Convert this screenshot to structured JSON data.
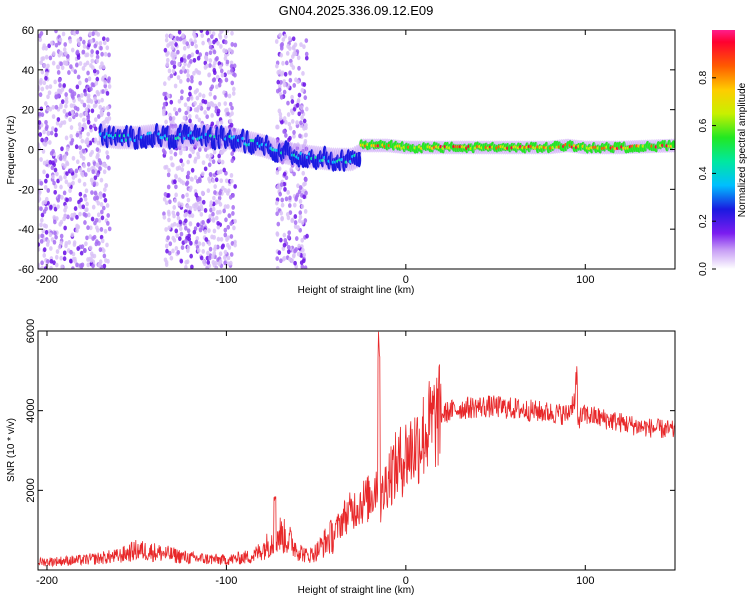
{
  "title": "GN04.2025.336.09.12.E09",
  "chart_data": [
    {
      "type": "heatmap",
      "name": "spectrogram",
      "xlabel": "Height of straight line (km)",
      "ylabel": "Frequency (Hz)",
      "xlim": [
        -205,
        150
      ],
      "ylim": [
        -60,
        60
      ],
      "xticks": [
        "-200",
        "-100",
        "0",
        "100"
      ],
      "xtick_values": [
        -200,
        -100,
        0,
        100
      ],
      "yticks": [
        "60",
        "40",
        "20",
        "0",
        "-20",
        "-40",
        "-60"
      ],
      "ytick_values": [
        60,
        40,
        20,
        0,
        -20,
        -40,
        -60
      ],
      "colorbar": {
        "label": "Normalized spectral amplitude",
        "ticks": [
          "0.0",
          "0.2",
          "0.4",
          "0.6",
          "0.8"
        ],
        "tick_values": [
          0.0,
          0.2,
          0.4,
          0.6,
          0.8
        ],
        "range": [
          0,
          1
        ]
      },
      "trace": {
        "x": [
          -170,
          -160,
          -150,
          -140,
          -130,
          -120,
          -110,
          -100,
          -90,
          -80,
          -70,
          -60,
          -50,
          -40,
          -35,
          -30,
          -28,
          -26,
          -25,
          -20,
          -10,
          0,
          10,
          20,
          40,
          60,
          80,
          90,
          100,
          120,
          150
        ],
        "y": [
          7,
          6,
          6,
          7,
          6,
          7,
          6,
          6,
          4,
          2,
          -1,
          -3,
          -4,
          -5,
          -5,
          -5,
          -4,
          -3,
          2,
          2,
          2,
          1,
          1,
          1,
          1,
          1,
          1,
          2,
          1,
          1,
          2
        ]
      },
      "noise_regions_km": [
        [
          -205,
          -165
        ],
        [
          -135,
          -95
        ],
        [
          -72,
          -55
        ]
      ]
    },
    {
      "type": "line",
      "name": "snr",
      "xlabel": "Height of straight line (km)",
      "ylabel": "SNR (10 * v/v)",
      "xlim": [
        -205,
        150
      ],
      "ylim": [
        0,
        6000
      ],
      "xticks": [
        "-200",
        "-100",
        "0",
        "100"
      ],
      "xtick_values": [
        -200,
        -100,
        0,
        100
      ],
      "yticks": [
        "6000",
        "4000",
        "2000"
      ],
      "ytick_values": [
        6000,
        4000,
        2000
      ],
      "color": "#e8282a",
      "envelope": {
        "x": [
          -205,
          -180,
          -160,
          -150,
          -140,
          -120,
          -100,
          -85,
          -75,
          -70,
          -65,
          -60,
          -55,
          -50,
          -45,
          -40,
          -35,
          -30,
          -25,
          -20,
          -16,
          -15,
          -14,
          -12,
          -10,
          -5,
          0,
          5,
          10,
          15,
          20,
          25,
          30,
          40,
          50,
          60,
          70,
          80,
          90,
          94,
          95,
          96,
          98,
          100,
          110,
          120,
          130,
          140,
          150
        ],
        "y": [
          200,
          250,
          350,
          500,
          450,
          300,
          250,
          350,
          700,
          900,
          750,
          500,
          350,
          450,
          700,
          900,
          1300,
          1500,
          1700,
          1800,
          2200,
          3600,
          1700,
          2000,
          2400,
          2600,
          2900,
          3100,
          3400,
          3700,
          3900,
          4000,
          4050,
          4100,
          4100,
          4050,
          4000,
          3950,
          3900,
          4300,
          3200,
          3800,
          3850,
          3900,
          3800,
          3700,
          3600,
          3550,
          3500
        ]
      },
      "spikes": [
        {
          "x": -15,
          "y": 6000
        },
        {
          "x": 95,
          "y": 5200
        },
        {
          "x": -73,
          "y": 2000
        }
      ]
    }
  ]
}
